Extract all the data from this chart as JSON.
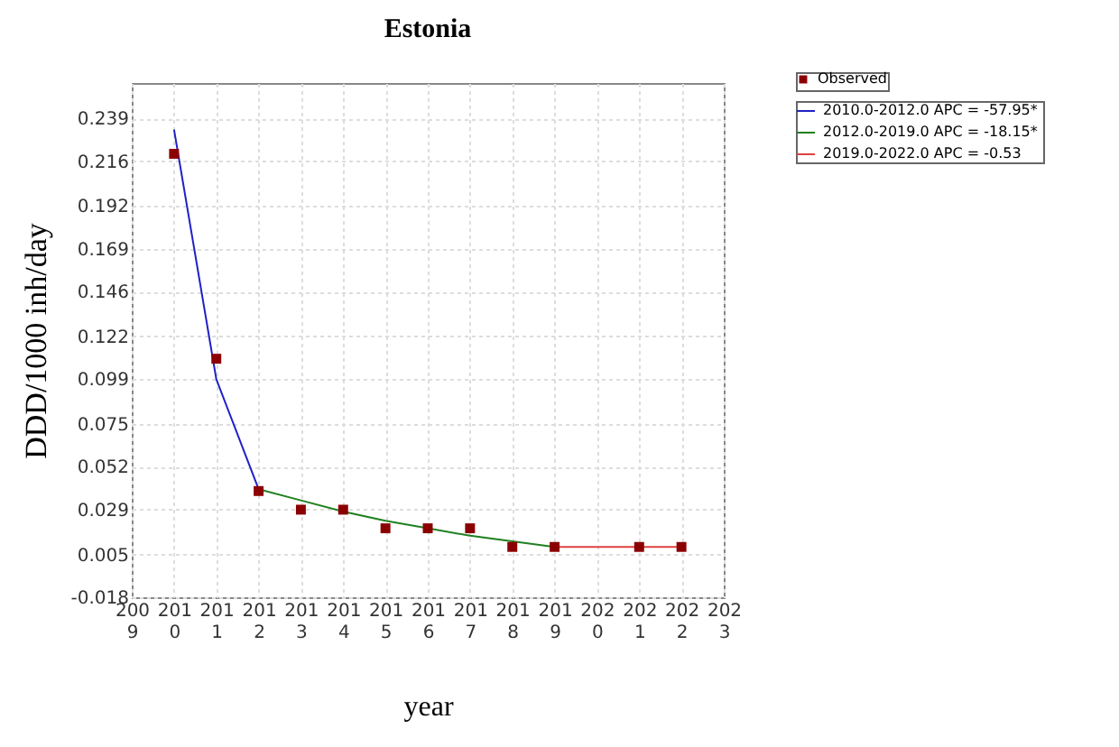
{
  "chart_data": {
    "type": "line",
    "title": "Estonia",
    "xlabel": "year",
    "ylabel": "DDD/1000 inh/day",
    "xlim": [
      2009,
      2023
    ],
    "xticks": [
      2009,
      2010,
      2011,
      2012,
      2013,
      2014,
      2015,
      2016,
      2017,
      2018,
      2019,
      2020,
      2021,
      2022,
      2023
    ],
    "ylim": [
      -0.018,
      0.258
    ],
    "yticks": [
      -0.018,
      0.005,
      0.029,
      0.052,
      0.075,
      0.099,
      0.122,
      0.146,
      0.169,
      0.192,
      0.216,
      0.239
    ],
    "grid": true,
    "legend": "top right",
    "series": [
      {
        "name": "Observed",
        "type": "scatter",
        "marker": "square",
        "color": "#8b0000",
        "x": [
          2010,
          2011,
          2012,
          2013,
          2014,
          2015,
          2016,
          2017,
          2018,
          2019,
          2021,
          2022
        ],
        "values": [
          0.22,
          0.11,
          0.039,
          0.029,
          0.029,
          0.019,
          0.019,
          0.019,
          0.009,
          0.009,
          0.009,
          0.009
        ]
      },
      {
        "name": "2010.0-2012.0 APC  = -57.95*",
        "type": "line",
        "marker": "none",
        "color": "#2020c8",
        "x": [
          2010,
          2011,
          2012
        ],
        "values": [
          0.233,
          0.099,
          0.04
        ]
      },
      {
        "name": "2012.0-2019.0 APC  = -18.15*",
        "type": "line",
        "marker": "none",
        "color": "#208020",
        "x": [
          2012,
          2013,
          2014,
          2015,
          2016,
          2017,
          2018,
          2019
        ],
        "values": [
          0.04,
          0.034,
          0.028,
          0.023,
          0.019,
          0.015,
          0.012,
          0.009
        ]
      },
      {
        "name": "2019.0-2022.0 APC  =  -0.53",
        "type": "line",
        "marker": "none",
        "color": "#e04040",
        "x": [
          2019,
          2020,
          2021,
          2022
        ],
        "values": [
          0.009,
          0.009,
          0.009,
          0.009
        ]
      }
    ]
  }
}
